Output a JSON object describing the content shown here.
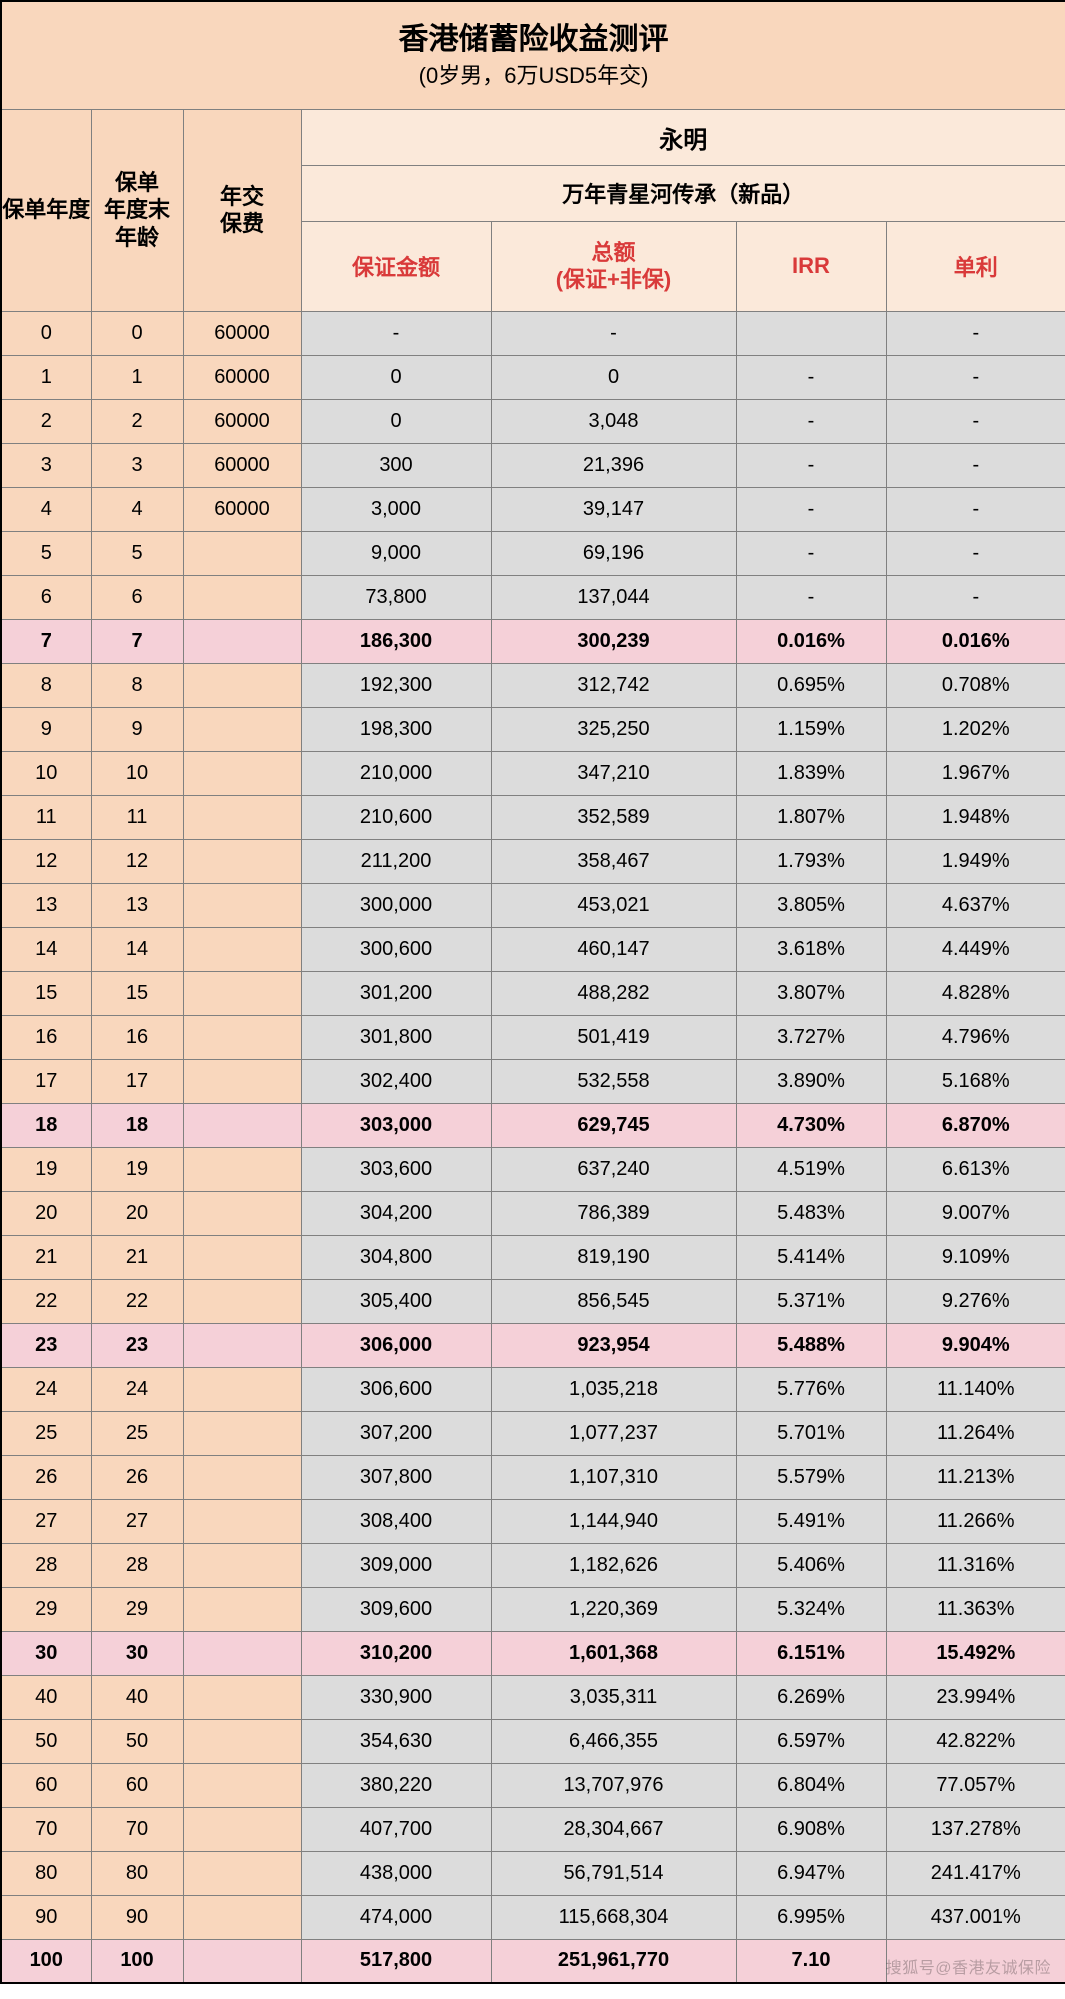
{
  "title": "香港储蓄险收益测评",
  "subtitle": "(0岁男，6万USD5年交)",
  "company": "永明",
  "product": "万年青星河传承（新品）",
  "headers": {
    "year": "保单年度",
    "age": "保单年度末年龄",
    "premium": "年交保费",
    "guaranteed": "保证金额",
    "total_line1": "总额",
    "total_line2": "(保证+非保)",
    "irr": "IRR",
    "simple": "单利"
  },
  "highlight_years": [
    7,
    18,
    23,
    30,
    100
  ],
  "watermark": "搜狐号@香港友诚保险",
  "colors": {
    "peach": "#f9d7bd",
    "light_peach": "#fbe9da",
    "gray": "#dcdcdc",
    "pink": "#f5d0d8",
    "header_red": "#d93a3a",
    "border": "#808080",
    "outer_border": "#000000"
  },
  "rows": [
    {
      "year": "0",
      "age": "0",
      "premium": "60000",
      "g": "-",
      "t": "-",
      "irr": "",
      "s": "-"
    },
    {
      "year": "1",
      "age": "1",
      "premium": "60000",
      "g": "0",
      "t": "0",
      "irr": "-",
      "s": "-"
    },
    {
      "year": "2",
      "age": "2",
      "premium": "60000",
      "g": "0",
      "t": "3,048",
      "irr": "-",
      "s": "-"
    },
    {
      "year": "3",
      "age": "3",
      "premium": "60000",
      "g": "300",
      "t": "21,396",
      "irr": "-",
      "s": "-"
    },
    {
      "year": "4",
      "age": "4",
      "premium": "60000",
      "g": "3,000",
      "t": "39,147",
      "irr": "-",
      "s": "-"
    },
    {
      "year": "5",
      "age": "5",
      "premium": "",
      "g": "9,000",
      "t": "69,196",
      "irr": "-",
      "s": "-"
    },
    {
      "year": "6",
      "age": "6",
      "premium": "",
      "g": "73,800",
      "t": "137,044",
      "irr": "-",
      "s": "-"
    },
    {
      "year": "7",
      "age": "7",
      "premium": "",
      "g": "186,300",
      "t": "300,239",
      "irr": "0.016%",
      "s": "0.016%"
    },
    {
      "year": "8",
      "age": "8",
      "premium": "",
      "g": "192,300",
      "t": "312,742",
      "irr": "0.695%",
      "s": "0.708%"
    },
    {
      "year": "9",
      "age": "9",
      "premium": "",
      "g": "198,300",
      "t": "325,250",
      "irr": "1.159%",
      "s": "1.202%"
    },
    {
      "year": "10",
      "age": "10",
      "premium": "",
      "g": "210,000",
      "t": "347,210",
      "irr": "1.839%",
      "s": "1.967%"
    },
    {
      "year": "11",
      "age": "11",
      "premium": "",
      "g": "210,600",
      "t": "352,589",
      "irr": "1.807%",
      "s": "1.948%"
    },
    {
      "year": "12",
      "age": "12",
      "premium": "",
      "g": "211,200",
      "t": "358,467",
      "irr": "1.793%",
      "s": "1.949%"
    },
    {
      "year": "13",
      "age": "13",
      "premium": "",
      "g": "300,000",
      "t": "453,021",
      "irr": "3.805%",
      "s": "4.637%"
    },
    {
      "year": "14",
      "age": "14",
      "premium": "",
      "g": "300,600",
      "t": "460,147",
      "irr": "3.618%",
      "s": "4.449%"
    },
    {
      "year": "15",
      "age": "15",
      "premium": "",
      "g": "301,200",
      "t": "488,282",
      "irr": "3.807%",
      "s": "4.828%"
    },
    {
      "year": "16",
      "age": "16",
      "premium": "",
      "g": "301,800",
      "t": "501,419",
      "irr": "3.727%",
      "s": "4.796%"
    },
    {
      "year": "17",
      "age": "17",
      "premium": "",
      "g": "302,400",
      "t": "532,558",
      "irr": "3.890%",
      "s": "5.168%"
    },
    {
      "year": "18",
      "age": "18",
      "premium": "",
      "g": "303,000",
      "t": "629,745",
      "irr": "4.730%",
      "s": "6.870%"
    },
    {
      "year": "19",
      "age": "19",
      "premium": "",
      "g": "303,600",
      "t": "637,240",
      "irr": "4.519%",
      "s": "6.613%"
    },
    {
      "year": "20",
      "age": "20",
      "premium": "",
      "g": "304,200",
      "t": "786,389",
      "irr": "5.483%",
      "s": "9.007%"
    },
    {
      "year": "21",
      "age": "21",
      "premium": "",
      "g": "304,800",
      "t": "819,190",
      "irr": "5.414%",
      "s": "9.109%"
    },
    {
      "year": "22",
      "age": "22",
      "premium": "",
      "g": "305,400",
      "t": "856,545",
      "irr": "5.371%",
      "s": "9.276%"
    },
    {
      "year": "23",
      "age": "23",
      "premium": "",
      "g": "306,000",
      "t": "923,954",
      "irr": "5.488%",
      "s": "9.904%"
    },
    {
      "year": "24",
      "age": "24",
      "premium": "",
      "g": "306,600",
      "t": "1,035,218",
      "irr": "5.776%",
      "s": "11.140%"
    },
    {
      "year": "25",
      "age": "25",
      "premium": "",
      "g": "307,200",
      "t": "1,077,237",
      "irr": "5.701%",
      "s": "11.264%"
    },
    {
      "year": "26",
      "age": "26",
      "premium": "",
      "g": "307,800",
      "t": "1,107,310",
      "irr": "5.579%",
      "s": "11.213%"
    },
    {
      "year": "27",
      "age": "27",
      "premium": "",
      "g": "308,400",
      "t": "1,144,940",
      "irr": "5.491%",
      "s": "11.266%"
    },
    {
      "year": "28",
      "age": "28",
      "premium": "",
      "g": "309,000",
      "t": "1,182,626",
      "irr": "5.406%",
      "s": "11.316%"
    },
    {
      "year": "29",
      "age": "29",
      "premium": "",
      "g": "309,600",
      "t": "1,220,369",
      "irr": "5.324%",
      "s": "11.363%"
    },
    {
      "year": "30",
      "age": "30",
      "premium": "",
      "g": "310,200",
      "t": "1,601,368",
      "irr": "6.151%",
      "s": "15.492%"
    },
    {
      "year": "40",
      "age": "40",
      "premium": "",
      "g": "330,900",
      "t": "3,035,311",
      "irr": "6.269%",
      "s": "23.994%"
    },
    {
      "year": "50",
      "age": "50",
      "premium": "",
      "g": "354,630",
      "t": "6,466,355",
      "irr": "6.597%",
      "s": "42.822%"
    },
    {
      "year": "60",
      "age": "60",
      "premium": "",
      "g": "380,220",
      "t": "13,707,976",
      "irr": "6.804%",
      "s": "77.057%"
    },
    {
      "year": "70",
      "age": "70",
      "premium": "",
      "g": "407,700",
      "t": "28,304,667",
      "irr": "6.908%",
      "s": "137.278%"
    },
    {
      "year": "80",
      "age": "80",
      "premium": "",
      "g": "438,000",
      "t": "56,791,514",
      "irr": "6.947%",
      "s": "241.417%"
    },
    {
      "year": "90",
      "age": "90",
      "premium": "",
      "g": "474,000",
      "t": "115,668,304",
      "irr": "6.995%",
      "s": "437.001%"
    },
    {
      "year": "100",
      "age": "100",
      "premium": "",
      "g": "517,800",
      "t": "251,961,770",
      "irr": "7.10",
      "s": ""
    }
  ]
}
